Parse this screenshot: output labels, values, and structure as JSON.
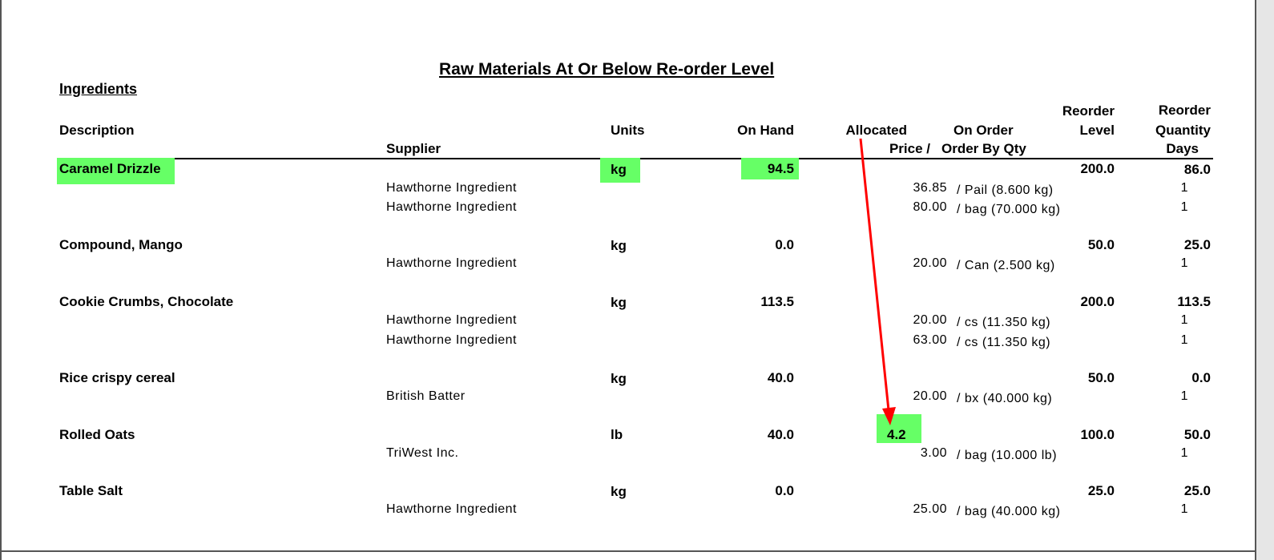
{
  "report": {
    "title": "Raw Materials At Or Below Re-order Level",
    "section": "Ingredients"
  },
  "headers": {
    "description": "Description",
    "supplier": "Supplier",
    "units": "Units",
    "on_hand": "On Hand",
    "allocated": "Allocated",
    "price": "Price /",
    "on_order": "On Order",
    "order_by_qty": "Order By Qty",
    "reorder_level_1": "Reorder",
    "reorder_level_2": "Level",
    "reorder_qty_1": "Reorder",
    "reorder_qty_2": "Quantity",
    "reorder_qty_3": "Days"
  },
  "items": [
    {
      "description": "Caramel Drizzle",
      "units": "kg",
      "on_hand": "94.5",
      "allocated": "",
      "reorder_level": "200.0",
      "reorder_qty": "86.0",
      "suppliers": [
        {
          "name": "Hawthorne Ingredient",
          "price": "36.85",
          "order_by": "/ Pail (8.600 kg)",
          "days": "1"
        },
        {
          "name": "Hawthorne Ingredient",
          "price": "80.00",
          "order_by": "/ bag (70.000 kg)",
          "days": "1"
        }
      ]
    },
    {
      "description": "Compound, Mango",
      "units": "kg",
      "on_hand": "0.0",
      "allocated": "",
      "reorder_level": "50.0",
      "reorder_qty": "25.0",
      "suppliers": [
        {
          "name": "Hawthorne Ingredient",
          "price": "20.00",
          "order_by": "/ Can (2.500 kg)",
          "days": "1"
        }
      ]
    },
    {
      "description": "Cookie Crumbs, Chocolate",
      "units": "kg",
      "on_hand": "113.5",
      "allocated": "",
      "reorder_level": "200.0",
      "reorder_qty": "113.5",
      "suppliers": [
        {
          "name": "Hawthorne Ingredient",
          "price": "20.00",
          "order_by": "/ cs (11.350 kg)",
          "days": "1"
        },
        {
          "name": "Hawthorne Ingredient",
          "price": "63.00",
          "order_by": "/ cs (11.350 kg)",
          "days": "1"
        }
      ]
    },
    {
      "description": "Rice crispy cereal",
      "units": "kg",
      "on_hand": "40.0",
      "allocated": "",
      "reorder_level": "50.0",
      "reorder_qty": "0.0",
      "suppliers": [
        {
          "name": "British Batter",
          "price": "20.00",
          "order_by": "/ bx (40.000 kg)",
          "days": "1"
        }
      ]
    },
    {
      "description": "Rolled Oats",
      "units": "lb",
      "on_hand": "40.0",
      "allocated": "4.2",
      "reorder_level": "100.0",
      "reorder_qty": "50.0",
      "suppliers": [
        {
          "name": "TriWest Inc.",
          "price": "3.00",
          "order_by": "/ bag (10.000 lb)",
          "days": "1"
        }
      ]
    },
    {
      "description": "Table Salt",
      "units": "kg",
      "on_hand": "0.0",
      "allocated": "",
      "reorder_level": "25.0",
      "reorder_qty": "25.0",
      "suppliers": [
        {
          "name": "Hawthorne Ingredient",
          "price": "25.00",
          "order_by": "/ bag (40.000 kg)",
          "days": "1"
        }
      ]
    }
  ],
  "highlight_color": "#66ff66",
  "annotation_color": "#ff0000"
}
